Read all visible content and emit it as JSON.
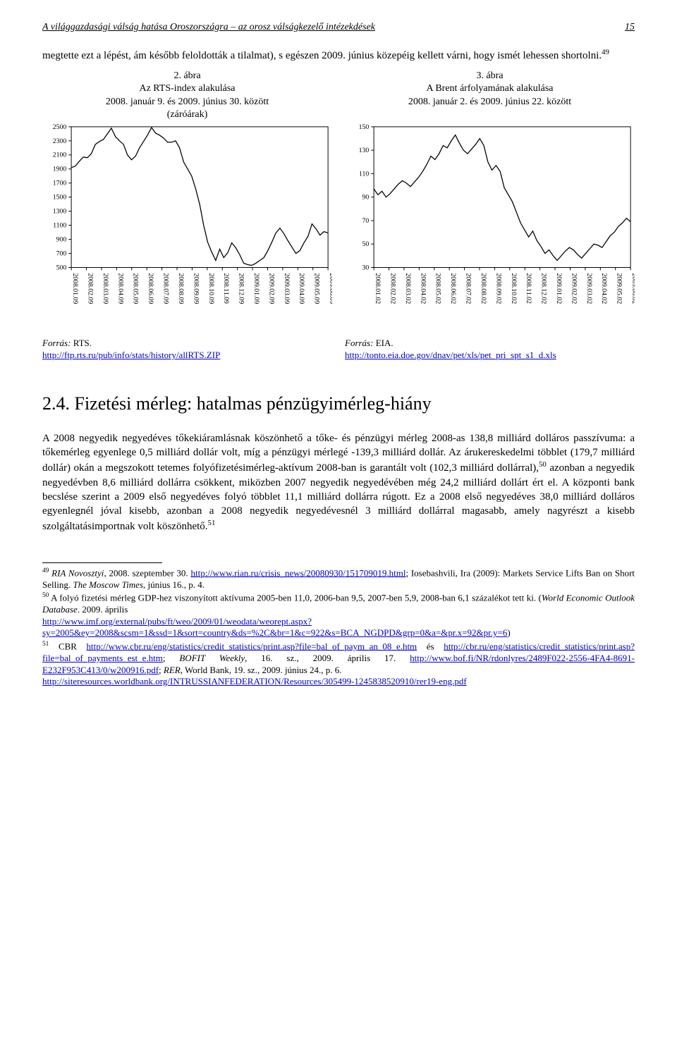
{
  "header": {
    "title": "A világgazdasági válság hatása Oroszországra – az orosz válságkezelő intézekdések",
    "page": "15"
  },
  "lead_para": "megtette ezt a lépést, ám később feloldották a tilalmat), s egészen 2009. június közepéig kellett várni, hogy ismét lehessen shortolni.",
  "lead_fn": "49",
  "fig_left": {
    "caption_num": "2. ábra",
    "caption_title": "Az RTS-index alakulása",
    "caption_sub": "2008. január 9. és 2009. június 30. között",
    "caption_sub2": "(záróárak)",
    "source_label": "Forrás:",
    "source_name": "RTS.",
    "source_url": "http://ftp.rts.ru/pub/info/stats/history/allRTS.ZIP"
  },
  "fig_right": {
    "caption_num": "3. ábra",
    "caption_title": "A Brent árfolyamának alakulása",
    "caption_sub": "2008. január 2. és 2009. június 22. között",
    "source_label": "Forrás:",
    "source_name": "EIA.",
    "source_url": "http://tonto.eia.doe.gov/dnav/pet/xls/pet_pri_spt_s1_d.xls"
  },
  "chart_left": {
    "type": "line",
    "background_color": "#ffffff",
    "line_color": "#000000",
    "axis_color": "#000000",
    "tick_color": "#000000",
    "font_size": 10,
    "y_ticks": [
      500,
      700,
      900,
      1100,
      1300,
      1500,
      1700,
      1900,
      2100,
      2300,
      2500
    ],
    "ylim": [
      500,
      2500
    ],
    "x_labels": [
      "2008.01.09",
      "2008.02.09",
      "2008.03.09",
      "2008.04.09",
      "2008.05.09",
      "2008.06.09",
      "2008.07.09",
      "2008.08.09",
      "2008.09.09",
      "2008.10.09",
      "2008.11.09",
      "2008.12.09",
      "2009.01.09",
      "2009.02.09",
      "2009.03.09",
      "2009.04.09",
      "2009.05.09",
      "2009.06.09"
    ],
    "series": [
      1920,
      1940,
      2010,
      2070,
      2060,
      2120,
      2250,
      2290,
      2320,
      2400,
      2480,
      2360,
      2300,
      2250,
      2100,
      2030,
      2080,
      2200,
      2290,
      2380,
      2490,
      2410,
      2380,
      2340,
      2280,
      2280,
      2300,
      2200,
      2000,
      1900,
      1800,
      1620,
      1400,
      1100,
      860,
      720,
      600,
      760,
      640,
      710,
      850,
      780,
      680,
      560,
      540,
      530,
      560,
      600,
      640,
      740,
      860,
      990,
      1060,
      980,
      880,
      790,
      700,
      740,
      850,
      940,
      1120,
      1050,
      960,
      1010,
      990
    ]
  },
  "chart_right": {
    "type": "line",
    "background_color": "#ffffff",
    "line_color": "#000000",
    "axis_color": "#000000",
    "tick_color": "#000000",
    "font_size": 10,
    "y_ticks": [
      30,
      50,
      70,
      90,
      110,
      130,
      150
    ],
    "ylim": [
      30,
      150
    ],
    "x_labels": [
      "2008.01.02",
      "2008.02.02",
      "2008.03.02",
      "2008.04.02",
      "2008.05.02",
      "2008.06.02",
      "2008.07.02",
      "2008.08.02",
      "2008.09.02",
      "2008.10.02",
      "2008.11.02",
      "2008.12.02",
      "2009.01.02",
      "2009.02.02",
      "2009.03.02",
      "2009.04.02",
      "2009.05.02",
      "2009.06.02"
    ],
    "series": [
      97,
      92,
      95,
      90,
      93,
      97,
      101,
      104,
      102,
      99,
      103,
      107,
      112,
      118,
      125,
      122,
      127,
      134,
      132,
      138,
      143,
      136,
      130,
      127,
      131,
      135,
      140,
      134,
      120,
      113,
      117,
      112,
      98,
      92,
      86,
      77,
      68,
      62,
      56,
      61,
      53,
      48,
      42,
      45,
      40,
      36,
      40,
      44,
      47,
      45,
      41,
      38,
      42,
      46,
      50,
      49,
      47,
      52,
      57,
      60,
      65,
      68,
      72,
      69
    ]
  },
  "section_title": "2.4. Fizetési mérleg: hatalmas pénzügyimérleg-hiány",
  "main_para": "A 2008 negyedik negyedéves tőkekiáramlásnak köszönhető a tőke- és pénzügyi mérleg 2008-as 138,8 milliárd dolláros passzívuma: a tőkemérleg egyenlege 0,5 milliárd dollár volt, míg a pénzügyi mérlegé -139,3 milliárd dollár. Az árukereskedelmi többlet (179,7 milliárd dollár) okán a megszokott tetemes folyófizetésimérleg-aktívum 2008-ban is garantált volt (102,3 milliárd dollárral),50 azonban a negyedik negyedévben 8,6 milliárd dollárra csökkent, miközben 2007 negyedik negyedévében még 24,2 milliárd dollárt ért el. A központi bank becslése szerint a 2009 első negyedéves folyó többlet 11,1 milliárd dollárra rúgott. Ez a 2008 első negyedéves 38,0 milliárd dolláros egyenlegnél jóval kisebb, azonban a 2008 negyedik negyedévesnél 3 milliárd dollárral magasabb, amely nagyrészt a kisebb szolgáltatásimportnak volt köszönhető.51",
  "footnotes": {
    "n49": {
      "num": "49",
      "lead_italic": "RIA Novosztyi",
      "lead_tail": ", 2008. szeptember 30. ",
      "url1": "http://www.rian.ru/crisis_news/20080930/151709019.html",
      "tail": "; Iosebashvili, Ira (2009): Markets Service Lifts Ban on Short Selling. ",
      "tail_italic": "The Moscow Times",
      "tail2": ", június 16., p. 4."
    },
    "n50": {
      "num": "50",
      "lead": " A folyó fizetési mérleg GDP-hez viszonyított aktívuma 2005-ben 11,0, 2006-ban 9,5, 2007-ben 5,9, 2008-ban 6,1 százalékot tett ki. (",
      "lead_italic": "World Economic Outlook Database",
      "mid": ". 2009. április",
      "url1": "http://www.imf.org/external/pubs/ft/weo/2009/01/weodata/weorept.aspx?sy=2005&ey=2008&scsm=1&ssd=1&sort=country&ds=%2C&br=1&c=922&s=BCA_NGDPD&grp=0&a=&pr.x=92&pr.y=6",
      "tail": ")"
    },
    "n51": {
      "num": "51",
      "lead": " CBR ",
      "url1": "http://www.cbr.ru/eng/statistics/credit_statistics/print.asp?file=bal_of_paym_an_08_e.htm",
      "mid": " és ",
      "url2": "http://cbr.ru/eng/statistics/credit_statistics/print.asp?file=bal_of_payments_est_e.htm",
      "mid2": "; ",
      "mid2_italic": "BOFIT Weekly",
      "mid3": ", 16. sz., 2009. április 17. ",
      "url3": "http://www.bof.fi/NR/rdonlyres/2489F022-2556-4FA4-8691-E232F953C413/0/w200916.pdf",
      "mid4": "; ",
      "mid4_italic": "RER",
      "mid5": ", World Bank, 19. sz., 2009. június 24., p. 6.",
      "url4": "http://siteresources.worldbank.org/INTRUSSIANFEDERATION/Resources/305499-1245838520910/rer19-eng.pdf"
    }
  }
}
